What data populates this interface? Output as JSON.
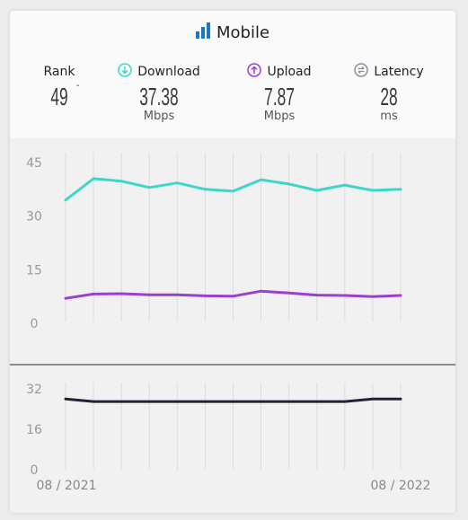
{
  "title": "Mobile",
  "title_icon": "signal-bars-icon",
  "metrics": {
    "rank": {
      "label": "Rank",
      "value": "49",
      "change": "-"
    },
    "download": {
      "label": "Download",
      "value": "37.38",
      "unit": "Mbps",
      "icon": "download-arrow-icon",
      "color": "#3dd7c7"
    },
    "upload": {
      "label": "Upload",
      "value": "7.87",
      "unit": "Mbps",
      "icon": "upload-arrow-icon",
      "color": "#9b3fcf"
    },
    "latency": {
      "label": "Latency",
      "value": "28",
      "unit": "ms",
      "icon": "latency-arrows-icon",
      "color": "#8a8fa0"
    }
  },
  "colors": {
    "download": "#3dd7c7",
    "upload": "#9b3fcf",
    "latency": "#1f2433",
    "accent": "#1a78c2"
  },
  "chart_data": [
    {
      "type": "line",
      "x": [
        "08 / 2021",
        "",
        "",
        "",
        "",
        "",
        "",
        "",
        "",
        "",
        "",
        "",
        "08 / 2022"
      ],
      "series": [
        {
          "name": "Download",
          "values": [
            34.5,
            40.5,
            39.8,
            38.0,
            39.3,
            37.5,
            37.0,
            40.2,
            39.0,
            37.2,
            38.7,
            37.2,
            37.5
          ]
        },
        {
          "name": "Upload",
          "values": [
            7.0,
            8.2,
            8.3,
            8.0,
            8.0,
            7.7,
            7.6,
            9.0,
            8.5,
            7.9,
            7.8,
            7.5,
            7.8
          ]
        }
      ],
      "yticks": [
        0,
        15,
        30,
        45
      ],
      "ylim": [
        0,
        45
      ],
      "grid": "vertical"
    },
    {
      "type": "line",
      "x": [
        "08 / 2021",
        "",
        "",
        "",
        "",
        "",
        "",
        "",
        "",
        "",
        "",
        "",
        "08 / 2022"
      ],
      "series": [
        {
          "name": "Latency",
          "values": [
            28,
            27,
            27,
            27,
            27,
            27,
            27,
            27,
            27,
            27,
            27,
            28,
            28
          ]
        }
      ],
      "yticks": [
        0,
        16,
        32
      ],
      "ylim": [
        0,
        32
      ],
      "grid": "vertical"
    }
  ],
  "date_labels": {
    "start": "08 / 2021",
    "end": "08 / 2022"
  }
}
